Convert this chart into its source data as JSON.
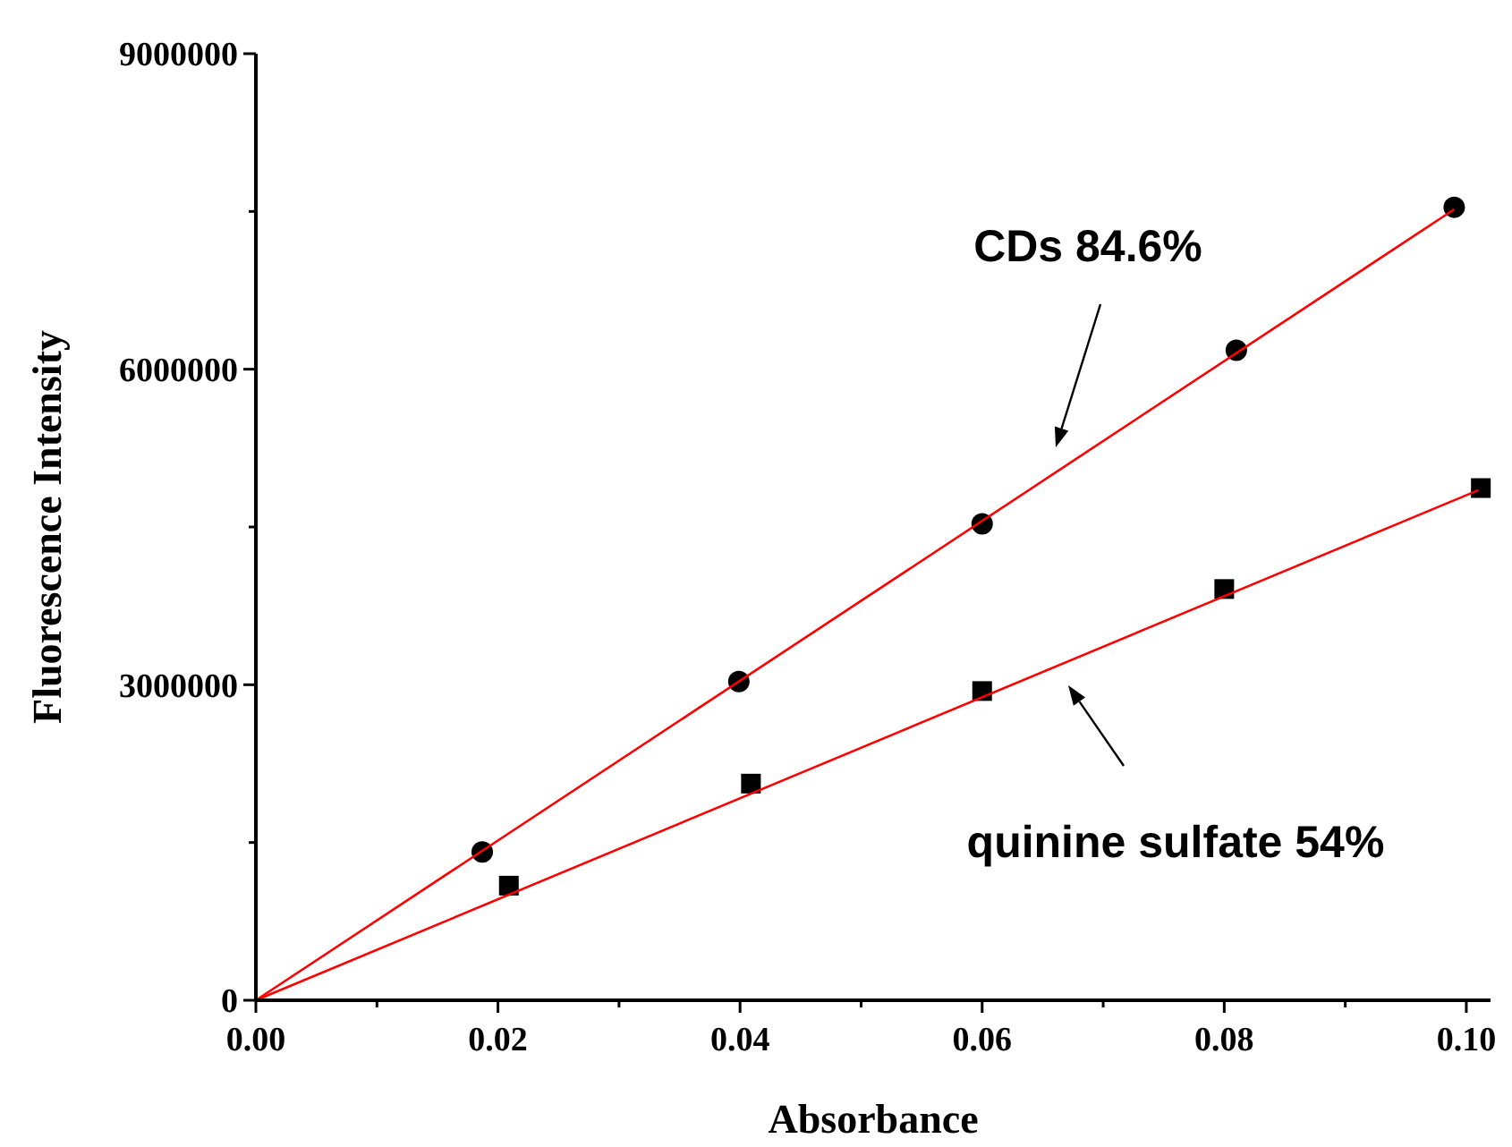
{
  "chart_data": {
    "type": "scatter",
    "xlabel": "Absorbance",
    "ylabel": "Fluorescence Intensity",
    "xlim": [
      0,
      0.102
    ],
    "ylim": [
      0,
      9000000
    ],
    "xticks": [
      {
        "value": 0,
        "label": "0.00"
      },
      {
        "value": 0.01,
        "label": null
      },
      {
        "value": 0.02,
        "label": "0.02"
      },
      {
        "value": 0.03,
        "label": null
      },
      {
        "value": 0.04,
        "label": "0.04"
      },
      {
        "value": 0.05,
        "label": null
      },
      {
        "value": 0.06,
        "label": "0.06"
      },
      {
        "value": 0.07,
        "label": null
      },
      {
        "value": 0.08,
        "label": "0.08"
      },
      {
        "value": 0.09,
        "label": null
      },
      {
        "value": 0.1,
        "label": "0.10"
      }
    ],
    "yticks": [
      0,
      {
        "value": 1500000,
        "label": null
      },
      3000000,
      {
        "value": 4500000,
        "label": null
      },
      6000000,
      {
        "value": 7500000,
        "label": null
      },
      9000000
    ],
    "series": [
      {
        "marker": "circle",
        "color": "#000000",
        "x": [
          0.0187,
          0.0399,
          0.06,
          0.081,
          0.099
        ],
        "values": [
          1410000,
          3030000,
          4530000,
          6180000,
          7540000
        ]
      },
      {
        "marker": "square",
        "color": "#000000",
        "x": [
          0.0209,
          0.0409,
          0.06,
          0.08,
          0.1012
        ],
        "values": [
          1090000,
          2060000,
          2940000,
          3910000,
          4870000
        ]
      },
      {
        "type": "line",
        "marker": "none",
        "color": "#ff0000",
        "x": [
          0,
          0.099
        ],
        "values": [
          0,
          7520000
        ]
      },
      {
        "type": "line",
        "marker": "none",
        "color": "#ff0000",
        "x": [
          0,
          0.101
        ],
        "values": [
          0,
          4850000
        ]
      }
    ],
    "annotations": [
      "CDs 84.6%",
      "quinine sulfate 54%"
    ]
  }
}
